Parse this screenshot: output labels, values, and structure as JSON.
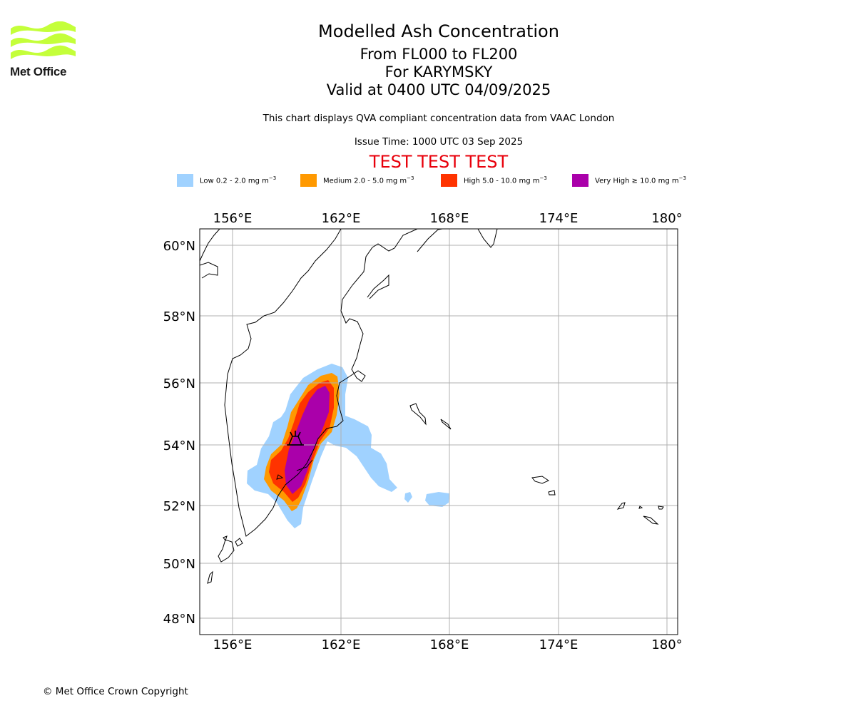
{
  "branding": {
    "logo_text": "Met Office"
  },
  "header": {
    "title": "Modelled Ash Concentration",
    "level_range": "From FL000 to FL200",
    "volcano": "For KARYMSKY",
    "valid_time": "Valid at 0400 UTC 04/09/2025",
    "description": "This chart displays QVA compliant concentration data from VAAC London",
    "issue_time": "Issue Time: 1000 UTC 03 Sep 2025",
    "test_banner": "TEST TEST TEST"
  },
  "legend": [
    {
      "label": "Low 0.2 - 2.0 mg m",
      "exp": "−3",
      "color": "#a0d2ff"
    },
    {
      "label": "Medium 2.0 - 5.0 mg m",
      "exp": "−3",
      "color": "#ff9900"
    },
    {
      "label": "High 5.0 - 10.0 mg m",
      "exp": "−3",
      "color": "#ff3300"
    },
    {
      "label": "Very High ≥ 10.0 mg m",
      "exp": "−3",
      "color": "#aa00aa"
    }
  ],
  "map": {
    "lon_ticks": [
      "156°E",
      "162°E",
      "168°E",
      "174°E",
      "180°"
    ],
    "lat_ticks": [
      "60°N",
      "58°N",
      "56°N",
      "54°N",
      "52°N",
      "50°N",
      "48°N"
    ],
    "volcano_marker": "volcano-icon"
  },
  "footer": {
    "copyright": "© Met Office Crown Copyright"
  }
}
